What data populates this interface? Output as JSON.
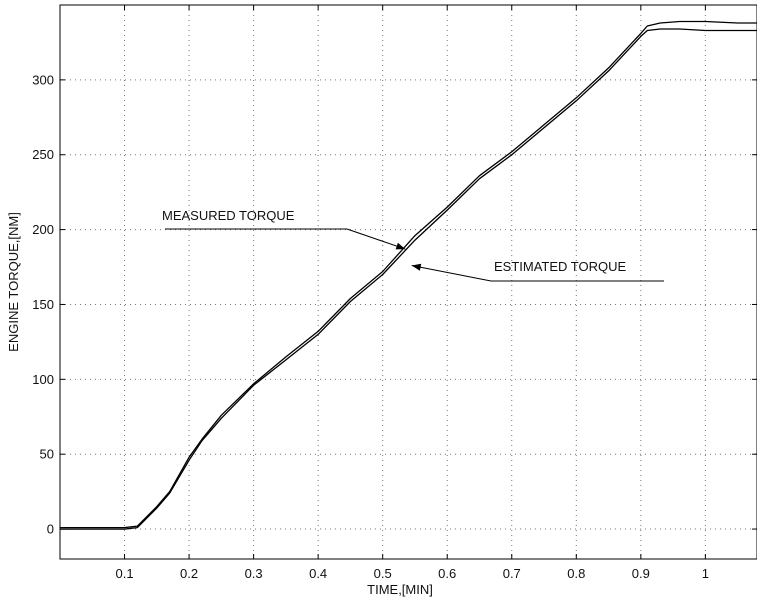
{
  "chart_data": {
    "type": "line",
    "title": "",
    "xlabel": "TIME,[MIN]",
    "ylabel": "ENGINE TORQUE,[NM]",
    "xlim": [
      0.0,
      1.08
    ],
    "ylim": [
      -20,
      350
    ],
    "x_ticks": [
      0.1,
      0.2,
      0.3,
      0.4,
      0.5,
      0.6,
      0.7,
      0.8,
      0.9,
      1
    ],
    "x_tick_labels": [
      "0.1",
      "0.2",
      "0.3",
      "0.4",
      "0.5",
      "0.6",
      "0.7",
      "0.8",
      "0.9",
      "1"
    ],
    "y_ticks": [
      0,
      50,
      100,
      150,
      200,
      250,
      300
    ],
    "y_tick_labels": [
      "0",
      "50",
      "100",
      "150",
      "200",
      "250",
      "300"
    ],
    "grid": true,
    "series": [
      {
        "name": "MEASURED TORQUE",
        "color": "#000000",
        "x": [
          0.0,
          0.05,
          0.1,
          0.12,
          0.15,
          0.17,
          0.2,
          0.22,
          0.25,
          0.3,
          0.35,
          0.4,
          0.45,
          0.5,
          0.55,
          0.6,
          0.65,
          0.7,
          0.75,
          0.8,
          0.85,
          0.9,
          0.91,
          0.93,
          0.96,
          1.0,
          1.05,
          1.08
        ],
        "y": [
          1,
          1,
          1,
          2,
          15,
          25,
          48,
          60,
          76,
          97,
          115,
          132,
          154,
          172,
          196,
          215,
          236,
          252,
          270,
          288,
          308,
          331,
          336,
          338,
          339,
          339,
          338,
          338
        ]
      },
      {
        "name": "ESTIMATED TORQUE",
        "color": "#000000",
        "x": [
          0.0,
          0.05,
          0.1,
          0.12,
          0.15,
          0.17,
          0.2,
          0.22,
          0.25,
          0.3,
          0.35,
          0.4,
          0.45,
          0.5,
          0.55,
          0.6,
          0.65,
          0.7,
          0.75,
          0.8,
          0.85,
          0.9,
          0.91,
          0.93,
          0.96,
          1.0,
          1.05,
          1.08
        ],
        "y": [
          0,
          0,
          0,
          1,
          14,
          24,
          46,
          59,
          74,
          96,
          113,
          130,
          152,
          170,
          193,
          213,
          234,
          250,
          268,
          286,
          306,
          329,
          333,
          334,
          334,
          333,
          333,
          333
        ]
      }
    ],
    "annotations": [
      {
        "text": "MEASURED TORQUE",
        "target_x": 0.535,
        "target_y": 187
      },
      {
        "text": "ESTIMATED TORQUE",
        "target_x": 0.545,
        "target_y": 176
      }
    ]
  }
}
